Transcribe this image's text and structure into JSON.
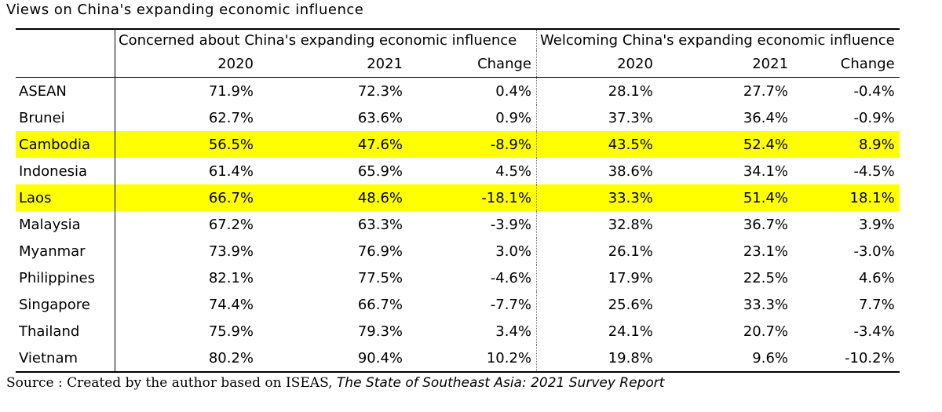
{
  "title": "Views on China's expanding economic influence",
  "groups": {
    "concerned": "Concerned about China's expanding economic influence",
    "welcoming": "Welcoming China's expanding economic influence"
  },
  "subheaders": [
    "2020",
    "2021",
    "Change",
    "2020",
    "2021",
    "Change"
  ],
  "rows": [
    {
      "country": "ASEAN",
      "values": [
        "71.9%",
        "72.3%",
        "0.4%",
        "28.1%",
        "27.7%",
        "-0.4%"
      ],
      "highlight": false
    },
    {
      "country": "Brunei",
      "values": [
        "62.7%",
        "63.6%",
        "0.9%",
        "37.3%",
        "36.4%",
        "-0.9%"
      ],
      "highlight": false
    },
    {
      "country": "Cambodia",
      "values": [
        "56.5%",
        "47.6%",
        "-8.9%",
        "43.5%",
        "52.4%",
        "8.9%"
      ],
      "highlight": true
    },
    {
      "country": "Indonesia",
      "values": [
        "61.4%",
        "65.9%",
        "4.5%",
        "38.6%",
        "34.1%",
        "-4.5%"
      ],
      "highlight": false
    },
    {
      "country": "Laos",
      "values": [
        "66.7%",
        "48.6%",
        "-18.1%",
        "33.3%",
        "51.4%",
        "18.1%"
      ],
      "highlight": true
    },
    {
      "country": "Malaysia",
      "values": [
        "67.2%",
        "63.3%",
        "-3.9%",
        "32.8%",
        "36.7%",
        "3.9%"
      ],
      "highlight": false
    },
    {
      "country": "Myanmar",
      "values": [
        "73.9%",
        "76.9%",
        "3.0%",
        "26.1%",
        "23.1%",
        "-3.0%"
      ],
      "highlight": false
    },
    {
      "country": "Philippines",
      "values": [
        "82.1%",
        "77.5%",
        "-4.6%",
        "17.9%",
        "22.5%",
        "4.6%"
      ],
      "highlight": false
    },
    {
      "country": "Singapore",
      "values": [
        "74.4%",
        "66.7%",
        "-7.7%",
        "25.6%",
        "33.3%",
        "7.7%"
      ],
      "highlight": false
    },
    {
      "country": "Thailand",
      "values": [
        "75.9%",
        "79.3%",
        "3.4%",
        "24.1%",
        "20.7%",
        "-3.4%"
      ],
      "highlight": false
    },
    {
      "country": "Vietnam",
      "values": [
        "80.2%",
        "90.4%",
        "10.2%",
        "19.8%",
        "9.6%",
        "-10.2%"
      ],
      "highlight": false
    }
  ],
  "highlight_color": "#ffff00",
  "source": {
    "prefix": "Source : Created by the author based on ISEAS, ",
    "italic": "The State of Southeast Asia: 2021 Survey Report"
  }
}
